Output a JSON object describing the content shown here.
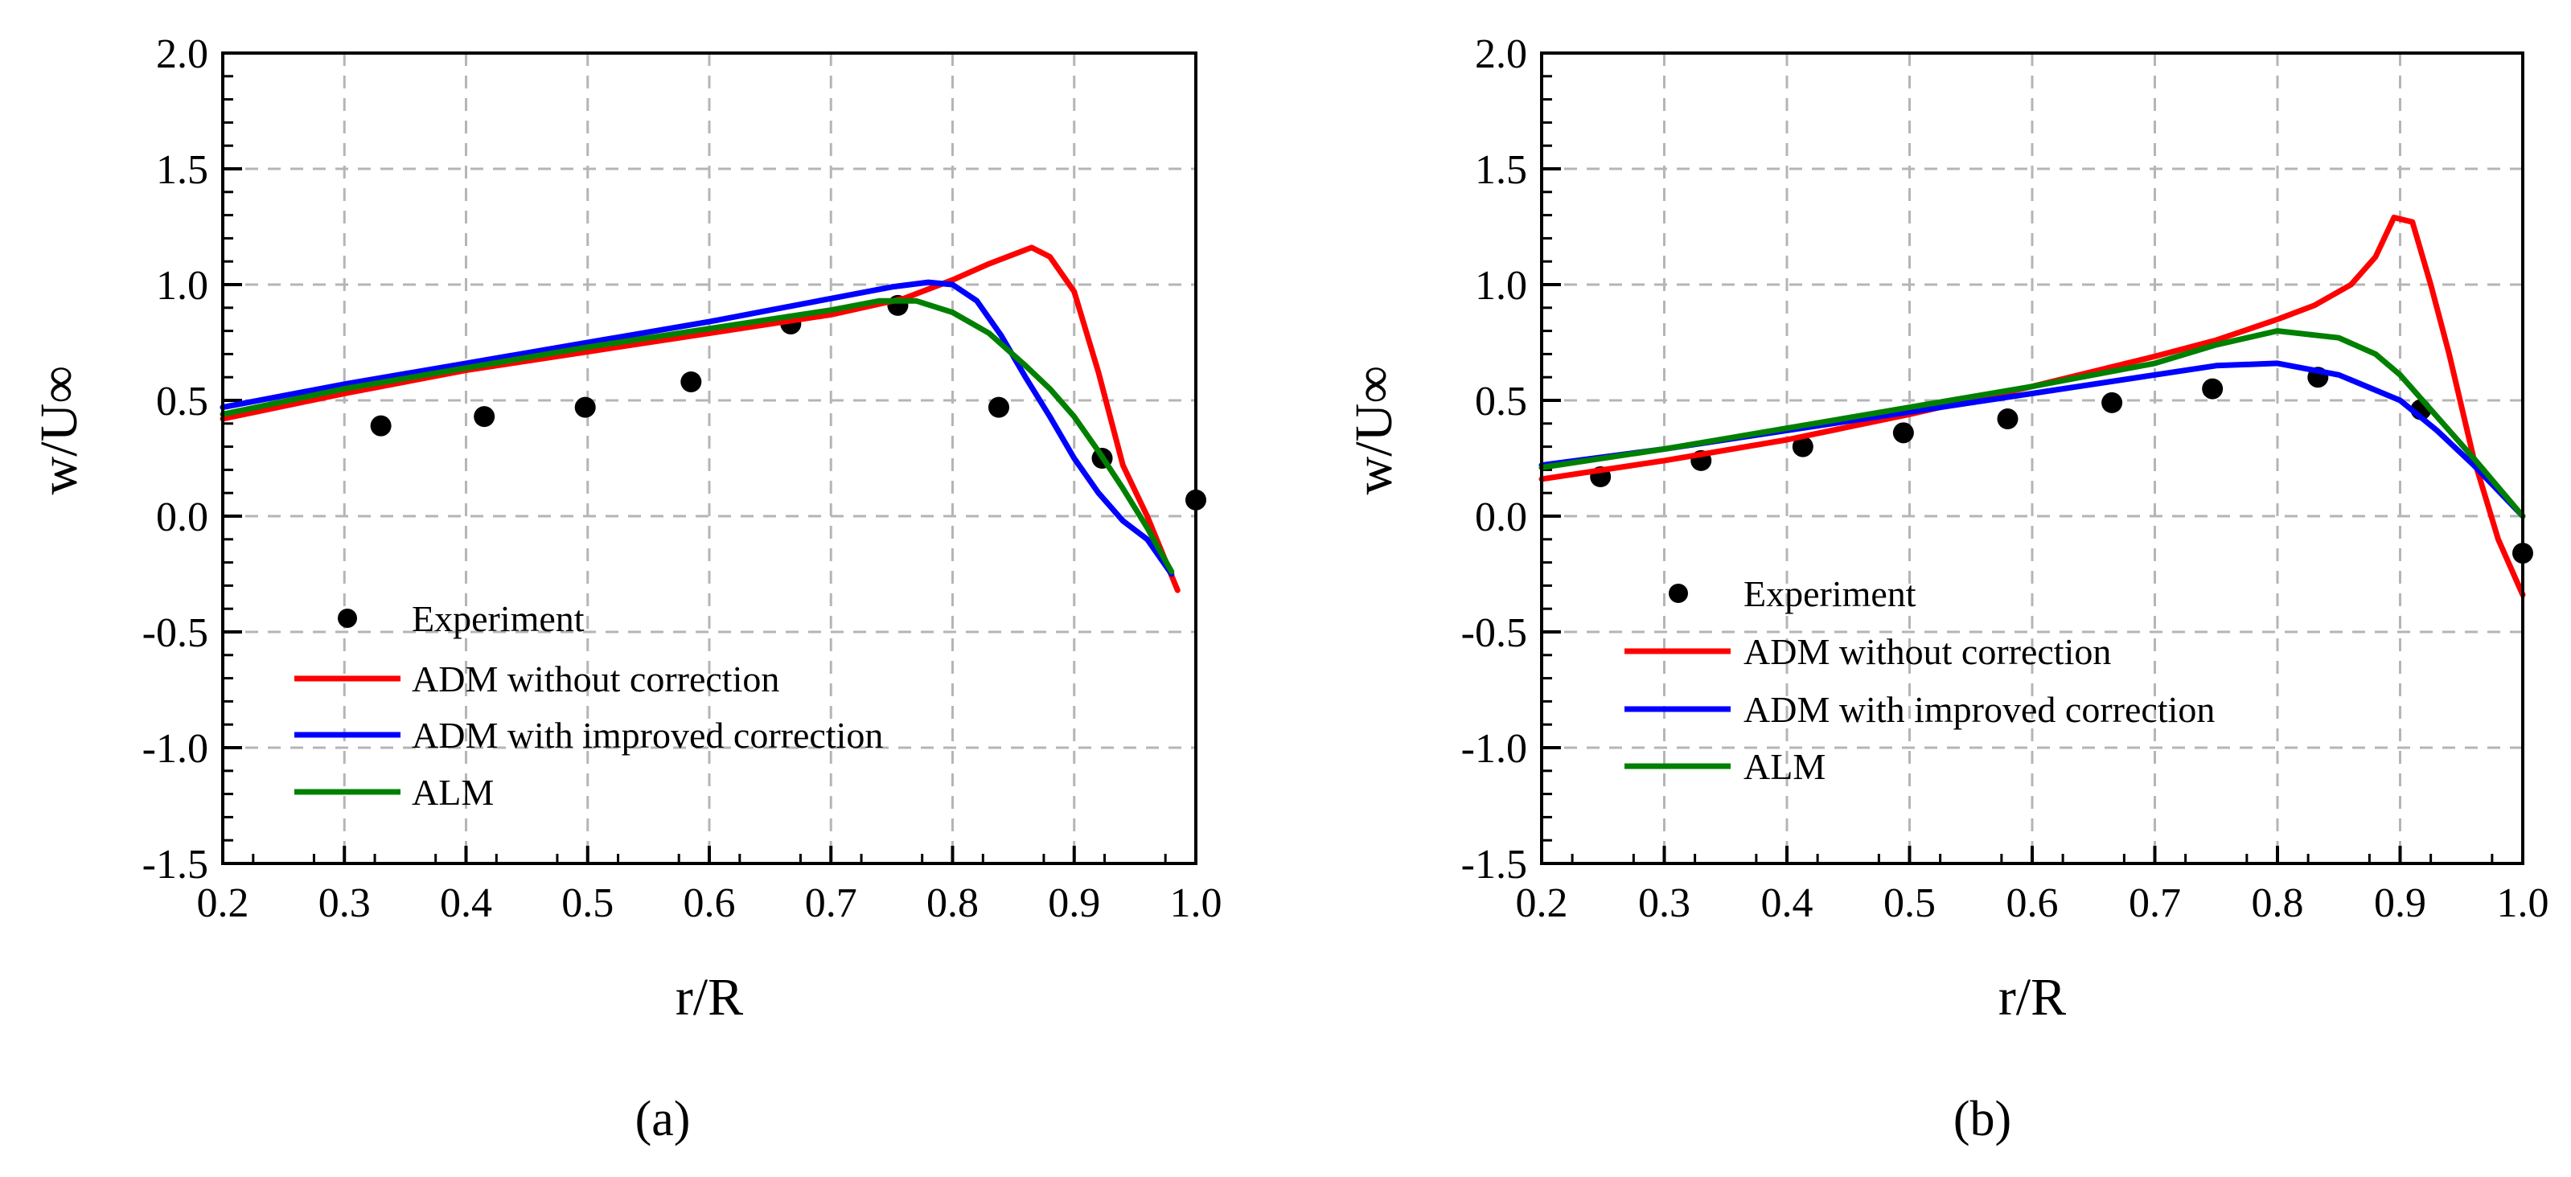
{
  "chart_data": [
    {
      "type": "line",
      "panel_label": "(a)",
      "xlabel": "r/R",
      "ylabel": "w/U∞",
      "xlim": [
        0.2,
        1.0
      ],
      "ylim": [
        -1.5,
        2.0
      ],
      "x_ticks": [
        "0.2",
        "0.3",
        "0.4",
        "0.5",
        "0.6",
        "0.7",
        "0.8",
        "0.9",
        "1.0"
      ],
      "y_ticks": [
        "-1.5",
        "-1.0",
        "-0.5",
        "0.0",
        "0.5",
        "1.0",
        "1.5",
        "2.0"
      ],
      "grid": true,
      "legend_position": "bottom-left",
      "colors": {
        "experiment": "#000000",
        "adm_no_corr": "#ff0000",
        "adm_improved": "#0000ff",
        "alm": "#008000"
      },
      "series": [
        {
          "name": "Experiment",
          "kind": "scatter",
          "color": "#000000",
          "x": [
            0.33,
            0.415,
            0.498,
            0.585,
            0.667,
            0.755,
            0.838,
            0.923,
            1.0
          ],
          "y": [
            0.39,
            0.43,
            0.47,
            0.58,
            0.83,
            0.91,
            0.47,
            0.25,
            0.07
          ]
        },
        {
          "name": "ADM without correction",
          "kind": "line",
          "color": "#ff0000",
          "x": [
            0.2,
            0.3,
            0.4,
            0.5,
            0.6,
            0.7,
            0.76,
            0.8,
            0.83,
            0.865,
            0.88,
            0.9,
            0.92,
            0.94,
            0.96,
            0.985
          ],
          "y": [
            0.42,
            0.53,
            0.63,
            0.71,
            0.79,
            0.87,
            0.94,
            1.02,
            1.09,
            1.16,
            1.12,
            0.97,
            0.62,
            0.22,
            0.0,
            -0.32
          ]
        },
        {
          "name": "ADM with improved correction",
          "kind": "line",
          "color": "#0000ff",
          "x": [
            0.2,
            0.3,
            0.4,
            0.5,
            0.6,
            0.7,
            0.75,
            0.78,
            0.8,
            0.82,
            0.84,
            0.86,
            0.88,
            0.9,
            0.92,
            0.94,
            0.96,
            0.98
          ],
          "y": [
            0.47,
            0.57,
            0.66,
            0.75,
            0.84,
            0.94,
            0.99,
            1.01,
            1.0,
            0.93,
            0.78,
            0.6,
            0.43,
            0.25,
            0.1,
            -0.02,
            -0.1,
            -0.25
          ]
        },
        {
          "name": "ALM",
          "kind": "line",
          "color": "#008000",
          "x": [
            0.2,
            0.3,
            0.4,
            0.5,
            0.6,
            0.7,
            0.74,
            0.77,
            0.8,
            0.83,
            0.86,
            0.88,
            0.9,
            0.92,
            0.94,
            0.96,
            0.98
          ],
          "y": [
            0.44,
            0.55,
            0.64,
            0.73,
            0.81,
            0.89,
            0.93,
            0.93,
            0.88,
            0.79,
            0.65,
            0.55,
            0.43,
            0.28,
            0.12,
            -0.05,
            -0.24
          ]
        }
      ]
    },
    {
      "type": "line",
      "panel_label": "(b)",
      "xlabel": "r/R",
      "ylabel": "w/U∞",
      "xlim": [
        0.2,
        1.0
      ],
      "ylim": [
        -1.5,
        2.0
      ],
      "x_ticks": [
        "0.2",
        "0.3",
        "0.4",
        "0.5",
        "0.6",
        "0.7",
        "0.8",
        "0.9",
        "1.0"
      ],
      "y_ticks": [
        "-1.5",
        "-1.0",
        "-0.5",
        "0.0",
        "0.5",
        "1.0",
        "1.5",
        "2.0"
      ],
      "grid": true,
      "legend_position": "bottom-left",
      "colors": {
        "experiment": "#000000",
        "adm_no_corr": "#ff0000",
        "adm_improved": "#0000ff",
        "alm": "#008000"
      },
      "series": [
        {
          "name": "Experiment",
          "kind": "scatter",
          "color": "#000000",
          "x": [
            0.248,
            0.33,
            0.413,
            0.495,
            0.58,
            0.665,
            0.747,
            0.833,
            0.917,
            1.0
          ],
          "y": [
            0.17,
            0.24,
            0.3,
            0.36,
            0.42,
            0.49,
            0.55,
            0.6,
            0.46,
            -0.16
          ]
        },
        {
          "name": "ADM without correction",
          "kind": "line",
          "color": "#ff0000",
          "x": [
            0.2,
            0.3,
            0.4,
            0.5,
            0.6,
            0.7,
            0.75,
            0.8,
            0.83,
            0.86,
            0.88,
            0.895,
            0.91,
            0.925,
            0.94,
            0.96,
            0.98,
            1.0
          ],
          "y": [
            0.16,
            0.24,
            0.33,
            0.44,
            0.56,
            0.69,
            0.76,
            0.85,
            0.91,
            1.0,
            1.12,
            1.29,
            1.27,
            1.0,
            0.7,
            0.25,
            -0.1,
            -0.34
          ]
        },
        {
          "name": "ADM with improved correction",
          "kind": "line",
          "color": "#0000ff",
          "x": [
            0.2,
            0.3,
            0.4,
            0.5,
            0.6,
            0.7,
            0.75,
            0.8,
            0.85,
            0.9,
            0.93,
            0.96,
            1.0
          ],
          "y": [
            0.22,
            0.29,
            0.37,
            0.45,
            0.53,
            0.61,
            0.65,
            0.66,
            0.61,
            0.5,
            0.37,
            0.22,
            0.0
          ]
        },
        {
          "name": "ALM",
          "kind": "line",
          "color": "#008000",
          "x": [
            0.2,
            0.3,
            0.4,
            0.5,
            0.6,
            0.7,
            0.75,
            0.8,
            0.85,
            0.88,
            0.9,
            0.93,
            0.96,
            1.0
          ],
          "y": [
            0.21,
            0.29,
            0.38,
            0.47,
            0.56,
            0.66,
            0.74,
            0.8,
            0.77,
            0.7,
            0.61,
            0.43,
            0.25,
            0.0
          ]
        }
      ]
    }
  ]
}
